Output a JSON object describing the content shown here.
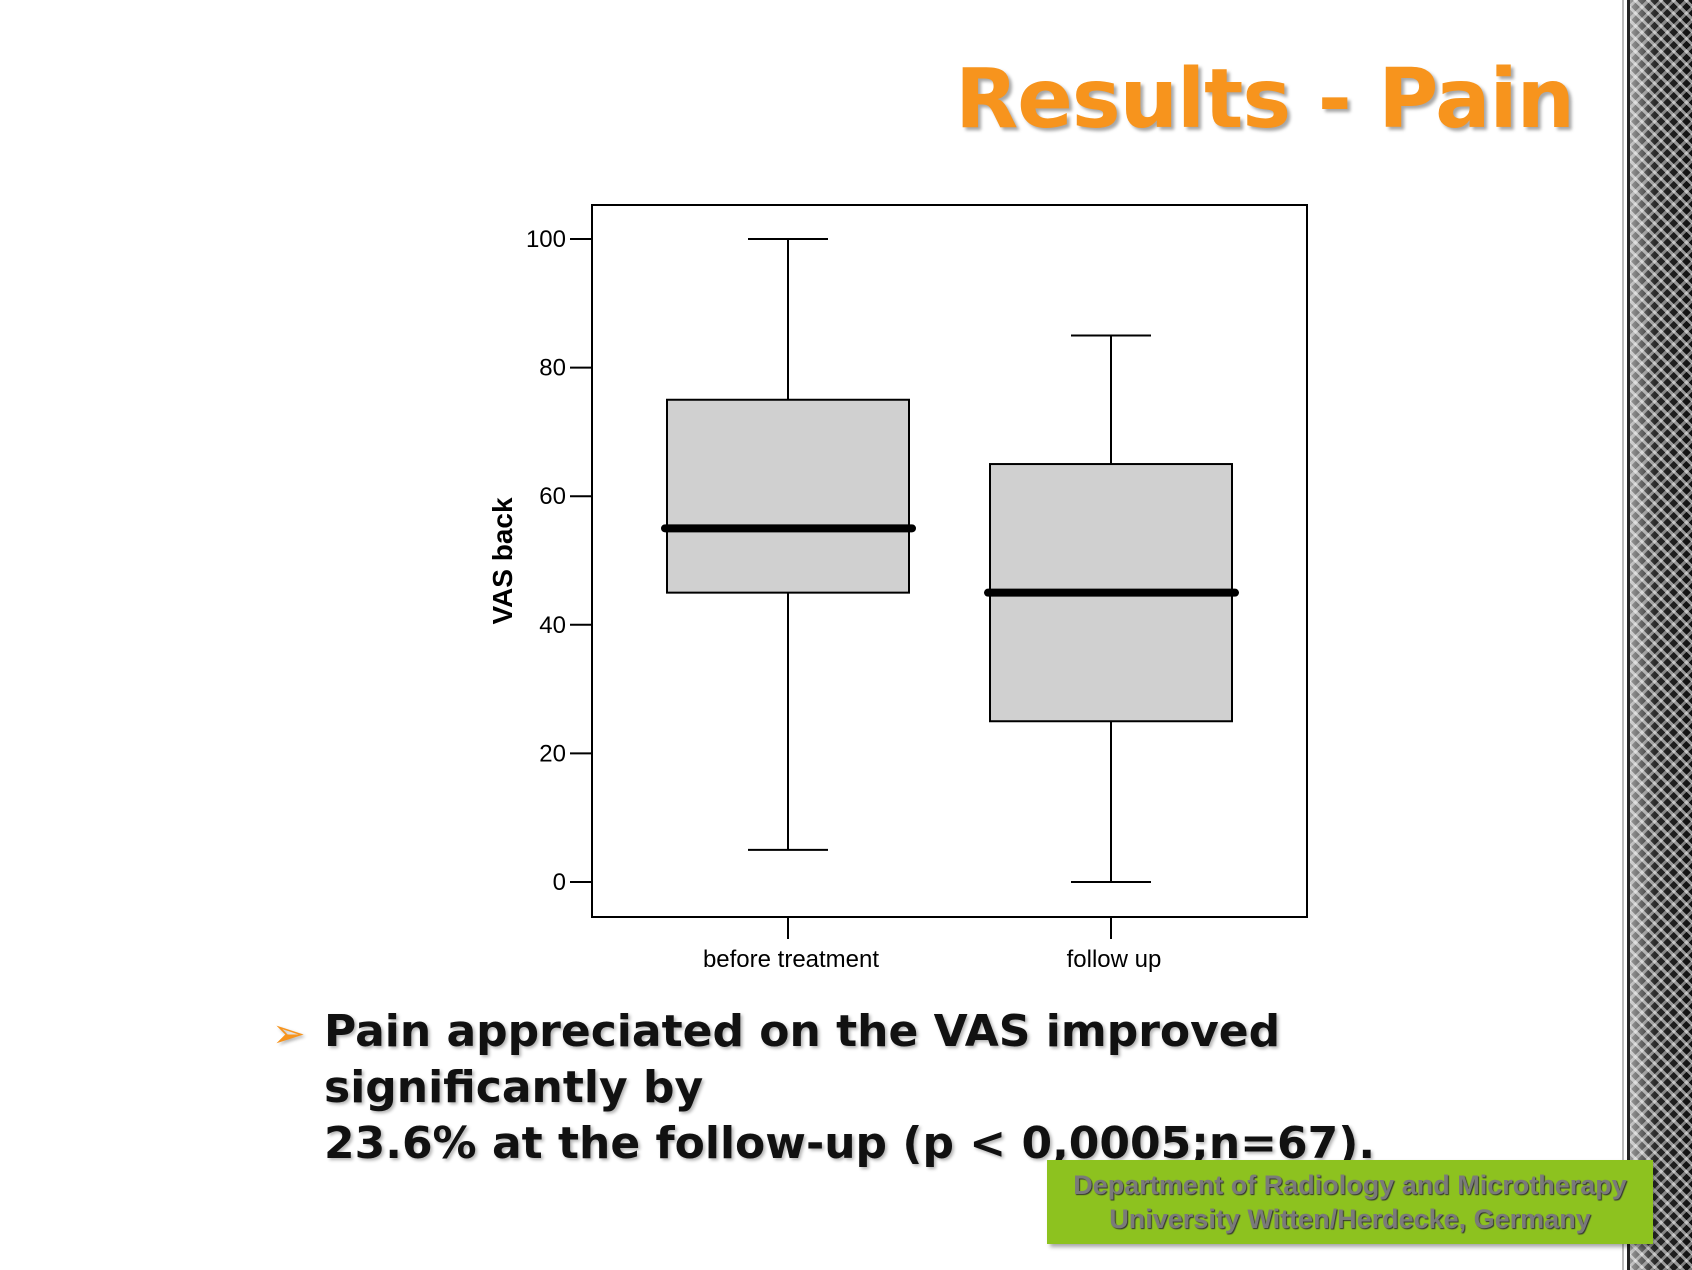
{
  "slide": {
    "title": "Results - Pain",
    "bullet_text_line1": "Pain appreciated on the VAS improved significantly by",
    "bullet_text_line2": "23.6% at the follow-up (p < 0,0005;n=67).",
    "bullet_icon": "arrow-bullet-icon",
    "footer_line1": "Department of Radiology and Microtherapy",
    "footer_line2": "University Witten/Herdecke, Germany"
  },
  "colors": {
    "title": "#f7941d",
    "box_fill": "#d0d0d0",
    "footer_bg": "#8dc21f"
  },
  "chart_data": {
    "type": "boxplot",
    "title": "",
    "xlabel": "",
    "ylabel": "VAS back",
    "ylim": [
      0,
      100
    ],
    "yticks": [
      0,
      20,
      40,
      60,
      80,
      100
    ],
    "categories": [
      "before treatment",
      "follow up"
    ],
    "boxes": [
      {
        "category": "before treatment",
        "min": 5,
        "q1": 45,
        "median": 55,
        "q3": 75,
        "max": 100
      },
      {
        "category": "follow up",
        "min": 0,
        "q1": 25,
        "median": 45,
        "q3": 65,
        "max": 85
      }
    ],
    "grid": false,
    "legend": "none"
  }
}
